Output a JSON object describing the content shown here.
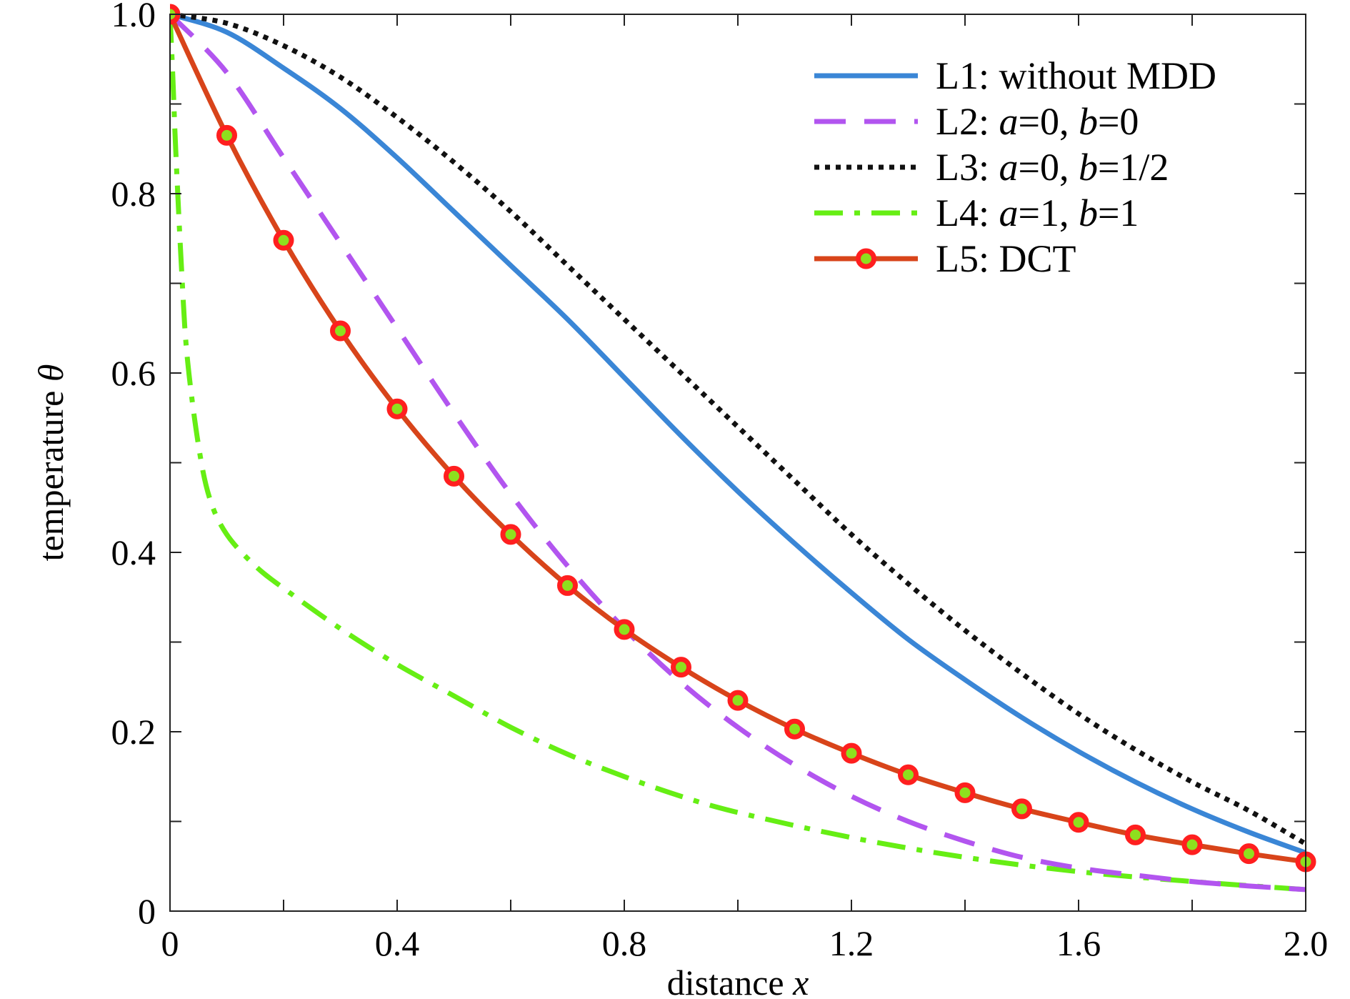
{
  "chart_data": {
    "type": "line",
    "xlabel": "distance",
    "xlabel_var": "x",
    "ylabel": "temperature",
    "ylabel_var": "θ",
    "xlim": [
      0,
      2.0
    ],
    "ylim": [
      0,
      1.0
    ],
    "x_ticks": [
      0,
      0.2,
      0.4,
      0.6,
      0.8,
      1.0,
      1.2,
      1.4,
      1.6,
      1.8,
      2.0
    ],
    "x_tick_labels": [
      "0",
      "",
      "0.4",
      "",
      "0.8",
      "",
      "1.2",
      "",
      "1.6",
      "",
      "2.0"
    ],
    "y_ticks": [
      0,
      0.1,
      0.2,
      0.3,
      0.4,
      0.5,
      0.6,
      0.7,
      0.8,
      0.9,
      1.0
    ],
    "y_tick_labels": [
      "0",
      "",
      "0.2",
      "",
      "0.4",
      "",
      "0.6",
      "",
      "0.8",
      "",
      "1.0"
    ],
    "grid": false,
    "legend_position": "top-right",
    "series": [
      {
        "name": "L1",
        "label_parts": [
          {
            "t": "L1: without MDD",
            "i": false
          }
        ],
        "color": "#3a86d6",
        "style": "solid",
        "x": [
          0,
          0.1,
          0.2,
          0.3,
          0.4,
          0.5,
          0.6,
          0.7,
          0.8,
          0.9,
          1.0,
          1.1,
          1.2,
          1.3,
          1.4,
          1.5,
          1.6,
          1.7,
          1.8,
          1.9,
          2.0
        ],
        "y": [
          1.0,
          0.98,
          0.94,
          0.895,
          0.84,
          0.78,
          0.72,
          0.66,
          0.595,
          0.53,
          0.468,
          0.41,
          0.355,
          0.303,
          0.258,
          0.216,
          0.178,
          0.144,
          0.114,
          0.088,
          0.065
        ]
      },
      {
        "name": "L2",
        "label_parts": [
          {
            "t": "L2: ",
            "i": false
          },
          {
            "t": "a",
            "i": true
          },
          {
            "t": "=0, ",
            "i": false
          },
          {
            "t": "b",
            "i": true
          },
          {
            "t": "=0",
            "i": false
          }
        ],
        "color": "#b255ef",
        "style": "dashed",
        "x": [
          0,
          0.1,
          0.2,
          0.3,
          0.4,
          0.5,
          0.6,
          0.7,
          0.8,
          0.9,
          1.0,
          1.1,
          1.2,
          1.3,
          1.4,
          1.5,
          1.6,
          1.7,
          1.8,
          1.9,
          2.0
        ],
        "y": [
          1.0,
          0.935,
          0.84,
          0.745,
          0.65,
          0.555,
          0.465,
          0.385,
          0.315,
          0.255,
          0.205,
          0.163,
          0.128,
          0.1,
          0.078,
          0.06,
          0.048,
          0.04,
          0.033,
          0.028,
          0.024
        ]
      },
      {
        "name": "L3",
        "label_parts": [
          {
            "t": "L3: ",
            "i": false
          },
          {
            "t": "a",
            "i": true
          },
          {
            "t": "=0, ",
            "i": false
          },
          {
            "t": "b",
            "i": true
          },
          {
            "t": "=1/2",
            "i": false
          }
        ],
        "color": "#111111",
        "style": "dotted",
        "x": [
          0,
          0.1,
          0.2,
          0.3,
          0.4,
          0.5,
          0.6,
          0.7,
          0.8,
          0.9,
          1.0,
          1.1,
          1.2,
          1.3,
          1.4,
          1.5,
          1.6,
          1.7,
          1.8,
          1.9,
          2.0
        ],
        "y": [
          1.0,
          0.99,
          0.965,
          0.93,
          0.885,
          0.835,
          0.78,
          0.72,
          0.66,
          0.6,
          0.54,
          0.48,
          0.42,
          0.365,
          0.313,
          0.265,
          0.22,
          0.18,
          0.144,
          0.112,
          0.075
        ]
      },
      {
        "name": "L4",
        "label_parts": [
          {
            "t": "L4: ",
            "i": false
          },
          {
            "t": "a",
            "i": true
          },
          {
            "t": "=1, ",
            "i": false
          },
          {
            "t": "b",
            "i": true
          },
          {
            "t": "=1",
            "i": false
          }
        ],
        "color": "#66ee14",
        "style": "dashdot",
        "x": [
          0,
          0.005,
          0.01,
          0.02,
          0.03,
          0.05,
          0.07,
          0.1,
          0.15,
          0.2,
          0.3,
          0.4,
          0.5,
          0.6,
          0.7,
          0.8,
          0.9,
          1.0,
          1.2,
          1.4,
          1.6,
          1.8,
          2.0
        ],
        "y": [
          1.0,
          0.93,
          0.85,
          0.72,
          0.62,
          0.52,
          0.46,
          0.42,
          0.385,
          0.36,
          0.315,
          0.275,
          0.24,
          0.205,
          0.175,
          0.15,
          0.128,
          0.11,
          0.082,
          0.06,
          0.044,
          0.033,
          0.024
        ]
      },
      {
        "name": "L5",
        "label_parts": [
          {
            "t": "L5: DCT",
            "i": false
          }
        ],
        "color": "#d8441a",
        "style": "solid-markers",
        "marker_edge": "#ff1f1f",
        "marker_face": "#8ee01e",
        "x": [
          0,
          0.1,
          0.2,
          0.3,
          0.4,
          0.5,
          0.6,
          0.7,
          0.8,
          0.9,
          1.0,
          1.1,
          1.2,
          1.3,
          1.4,
          1.5,
          1.6,
          1.7,
          1.8,
          1.9,
          2.0
        ],
        "y": [
          1.0,
          0.865,
          0.748,
          0.647,
          0.56,
          0.485,
          0.42,
          0.363,
          0.314,
          0.272,
          0.235,
          0.203,
          0.176,
          0.152,
          0.132,
          0.114,
          0.099,
          0.085,
          0.074,
          0.064,
          0.055
        ]
      }
    ]
  }
}
